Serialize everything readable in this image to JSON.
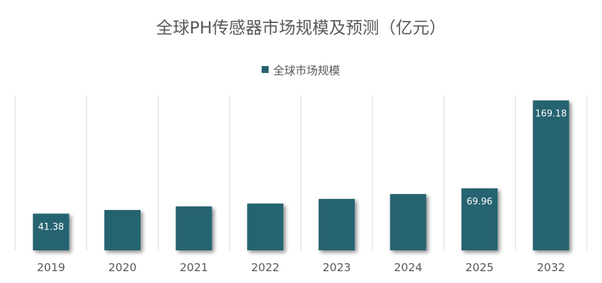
{
  "chart_data": {
    "type": "bar",
    "title": "全球PH传感器市场规模及预测（亿元）",
    "categories": [
      "2019",
      "2020",
      "2021",
      "2022",
      "2023",
      "2024",
      "2025",
      "2032"
    ],
    "series": [
      {
        "name": "全球市场规模",
        "values": [
          41.38,
          45.5,
          49.6,
          52.8,
          58.0,
          63.5,
          69.96,
          169.18
        ],
        "data_labels": [
          "41.38",
          "",
          "",
          "",
          "",
          "",
          "69.96",
          "169.18"
        ]
      }
    ],
    "xlabel": "",
    "ylabel": "",
    "ylim": [
      0,
      175
    ],
    "grid": "vertical category separators",
    "legend_position": "top-center",
    "bar_color": "#27636F"
  }
}
